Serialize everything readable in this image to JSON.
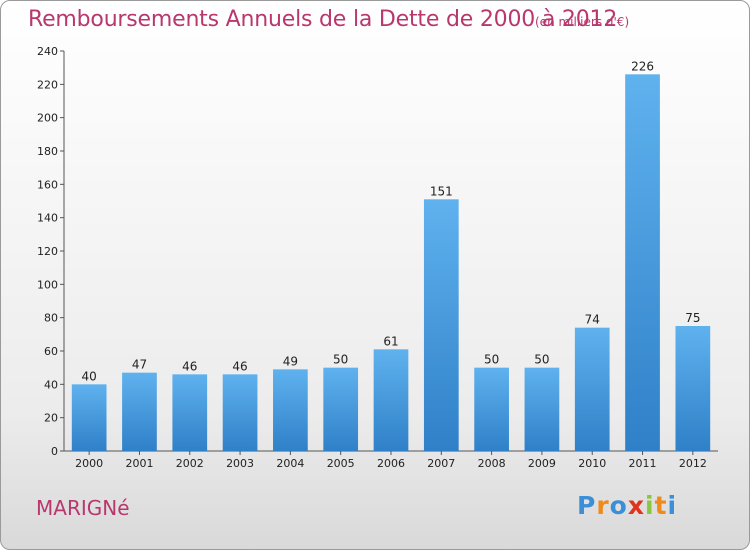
{
  "chart_data": {
    "type": "bar",
    "title": "Remboursements Annuels de la Dette de 2000 à 2012",
    "subtitle": "(en milliers d'€)",
    "categories": [
      "2000",
      "2001",
      "2002",
      "2003",
      "2004",
      "2005",
      "2006",
      "2007",
      "2008",
      "2009",
      "2010",
      "2011",
      "2012"
    ],
    "values": [
      40,
      47,
      46,
      46,
      49,
      50,
      61,
      151,
      50,
      50,
      74,
      226,
      75
    ],
    "ylim": [
      0,
      240
    ],
    "yticks": [
      0,
      20,
      40,
      60,
      80,
      100,
      120,
      140,
      160,
      180,
      200,
      220,
      240
    ],
    "grid": false,
    "bar_color": "#4a9ee2"
  },
  "footer": {
    "city": "MARIGNé",
    "logo": [
      "P",
      "r",
      "o",
      "x",
      "i",
      "t",
      "i"
    ],
    "logo_colors": [
      "#3a8fd8",
      "#f08a1c",
      "#3a8fd8",
      "#e0321c",
      "#8cc63e",
      "#f08a1c",
      "#3a8fd8"
    ]
  }
}
